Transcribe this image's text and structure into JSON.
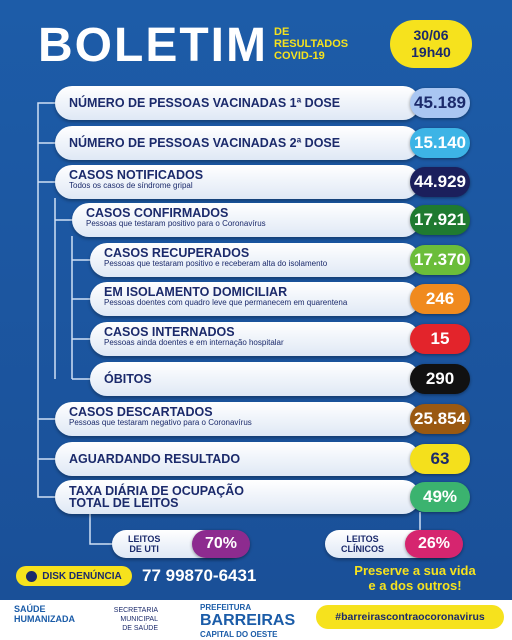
{
  "header": {
    "title": "BOLETIM",
    "subtitle_lines": [
      "DE",
      "RESULTADOS",
      "COVID-19"
    ],
    "date": "30/06",
    "time": "19h40"
  },
  "rows": [
    {
      "label": "NÚMERO DE PESSOAS VACINADAS 1ª DOSE",
      "value": "45.189",
      "color": "#a9c6f2",
      "text_color": "#1b2a6b"
    },
    {
      "label": "NÚMERO DE PESSOAS VACINADAS 2ª DOSE",
      "value": "15.140",
      "color": "#3db4e6",
      "text_color": "#ffffff"
    },
    {
      "label": "CASOS NOTIFICADOS",
      "note": "Todos os casos de síndrome gripal",
      "value": "44.929",
      "color": "#1b1f5c",
      "text_color": "#ffffff"
    },
    {
      "label": "CASOS CONFIRMADOS",
      "note": "Pessoas que testaram positivo para o Coronavírus",
      "value": "17.921",
      "color": "#1f7a30",
      "text_color": "#ffffff"
    },
    {
      "label": "CASOS RECUPERADOS",
      "note": "Pessoas que testaram positivo e receberam alta do isolamento",
      "value": "17.370",
      "color": "#6bbd3a",
      "text_color": "#ffffff"
    },
    {
      "label": "EM ISOLAMENTO DOMICILIAR",
      "note": "Pessoas doentes com quadro leve que permanecem em quarentena",
      "value": "246",
      "color": "#f08a1e",
      "text_color": "#ffffff"
    },
    {
      "label": "CASOS INTERNADOS",
      "note": "Pessoas ainda doentes e em internação hospitalar",
      "value": "15",
      "color": "#e3242b",
      "text_color": "#ffffff"
    },
    {
      "label": "ÓBITOS",
      "value": "290",
      "color": "#111111",
      "text_color": "#ffffff"
    },
    {
      "label": "CASOS DESCARTADOS",
      "note": "Pessoas que testaram negativo para o Coronavírus",
      "value": "25.854",
      "color": "#9a5912",
      "text_color": "#ffffff"
    },
    {
      "label": "AGUARDANDO RESULTADO",
      "value": "63",
      "color": "#f4e01c",
      "text_color": "#1b2a6b"
    },
    {
      "label_lines": [
        "TAXA DIÁRIA DE OCUPAÇÃO",
        "TOTAL DE LEITOS"
      ],
      "value": "49%",
      "color": "#3bb36f",
      "text_color": "#ffffff"
    }
  ],
  "beds": [
    {
      "label_lines": [
        "LEITOS",
        "DE UTI"
      ],
      "value": "70%",
      "color": "#8d2b8f"
    },
    {
      "label_lines": [
        "LEITOS",
        "CLÍNICOS"
      ],
      "value": "26%",
      "color": "#d6256f"
    }
  ],
  "footer": {
    "hotline_label": "DISK DENÚNCIA",
    "phone": "77 99870-6431",
    "slogan_lines": [
      "Preserve a sua vida",
      "e a dos outros!"
    ],
    "logo_saude": [
      "SAÚDE",
      "HUMANIZADA"
    ],
    "secretaria": [
      "SECRETARIA MUNICIPAL",
      "DE SAÚDE"
    ],
    "prefeitura": [
      "PREFEITURA",
      "BARREIRAS",
      "CAPITAL DO OESTE"
    ],
    "hashtag": "#barreirascontraocoronavirus"
  }
}
